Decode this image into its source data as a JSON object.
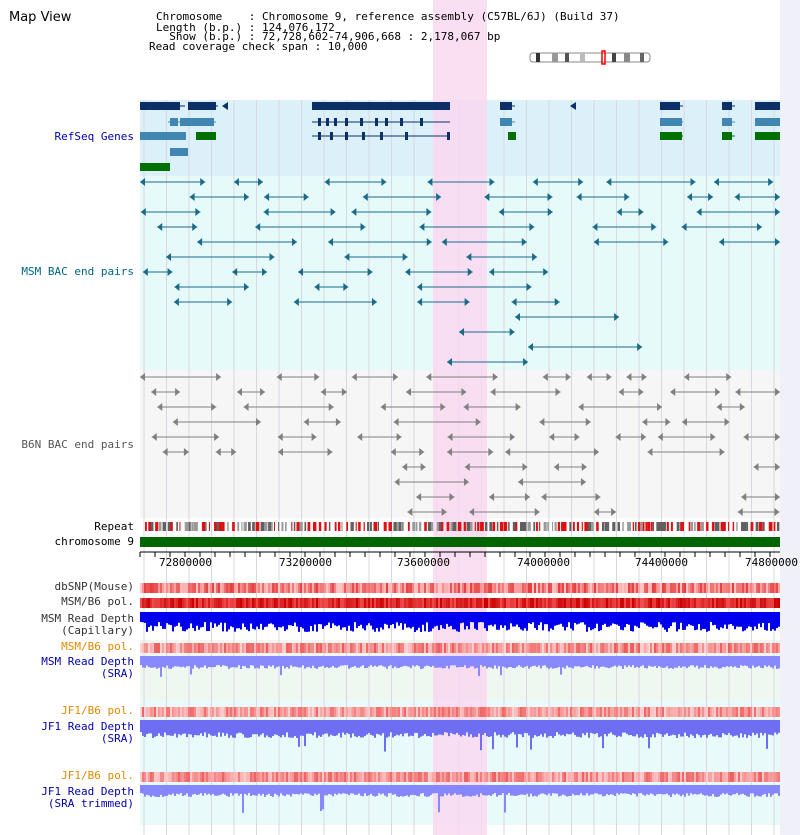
{
  "view_title": "Map View",
  "info": {
    "chromosome_line": "Chromosome    : Chromosome 9, reference assembly (C57BL/6J) (Build 37)",
    "length_line": "Length (b.p.) : 124,076,172",
    "show_line": "  Show (b.p.) : 72,728,602-74,906,668 : 2,178,067 bp",
    "coverage_line": "Read coverage check span : 10,000"
  },
  "tracks": {
    "refseq": "RefSeq Genes",
    "msm_bac": "MSM BAC end pairs",
    "b6n_bac": "B6N BAC end pairs",
    "repeat": "Repeat",
    "chromosome": "chromosome 9",
    "dbsnp": "dbSNP(Mouse)",
    "msm_b6_pol_1": "MSM/B6 pol.",
    "msm_read_depth_cap": "MSM Read Depth\n(Capillary)",
    "msm_b6_pol_2": "MSM/B6 pol.",
    "msm_read_depth_sra": "MSM Read Depth\n(SRA)",
    "jf1_b6_pol_1": "JF1/B6 pol.",
    "jf1_read_depth_sra": "JF1 Read Depth\n(SRA)",
    "jf1_b6_pol_2": "JF1/B6 pol.",
    "jf1_read_depth_trim": "JF1 Read Depth\n(SRA trimmed)"
  },
  "axis_ticks": [
    "72800000",
    "73200000",
    "73600000",
    "74000000",
    "74400000",
    "74800000"
  ],
  "colors": {
    "refseq_dark": "#0b2f66",
    "refseq_mid": "#3f86b3",
    "refseq_green": "#007000",
    "msm_bac": "#1a6b8a",
    "b6n_bac": "#808080",
    "highlight": "#f9d8f0",
    "label_blue": "#0000aa",
    "label_orange": "#e08a00",
    "label_teal": "#006680"
  }
}
